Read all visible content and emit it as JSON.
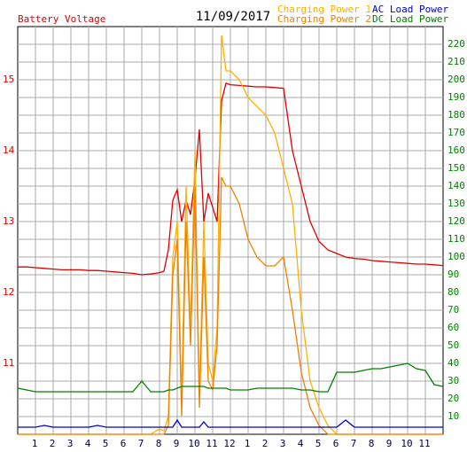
{
  "chart_data": {
    "type": "line",
    "title": "11/09/2017",
    "x": [
      0,
      0.5,
      1,
      1.5,
      2,
      2.5,
      3,
      3.5,
      4,
      4.5,
      5,
      5.5,
      6,
      6.5,
      7,
      7.5,
      8,
      8.25,
      8.5,
      8.75,
      9,
      9.25,
      9.5,
      9.75,
      10,
      10.25,
      10.5,
      10.75,
      11,
      11.25,
      11.5,
      11.75,
      12,
      12.5,
      13,
      13.5,
      14,
      14.5,
      15,
      15.5,
      16,
      16.5,
      17,
      17.5,
      18,
      18.5,
      19,
      19.5,
      20,
      20.5,
      21,
      21.5,
      22,
      22.5,
      23,
      23.5,
      24
    ],
    "xlim": [
      0,
      24
    ],
    "xticks": [
      1,
      2,
      3,
      4,
      5,
      6,
      7,
      8,
      9,
      10,
      11,
      12,
      {
        "value": 13,
        "label": "1"
      },
      {
        "value": 14,
        "label": "2"
      },
      {
        "value": 15,
        "label": "3"
      },
      {
        "value": 16,
        "label": "4"
      },
      {
        "value": 17,
        "label": "5"
      },
      {
        "value": 18,
        "label": "6"
      },
      {
        "value": 19,
        "label": "7"
      },
      {
        "value": 20,
        "label": "8"
      },
      {
        "value": 21,
        "label": "9"
      },
      {
        "value": 22,
        "label": "10"
      },
      {
        "value": 23,
        "label": "11"
      }
    ],
    "ylim": [
      10,
      15.75
    ],
    "yticks": [
      11,
      12,
      13,
      14,
      15
    ],
    "y2lim": [
      0,
      230
    ],
    "y2ticks": [
      10,
      20,
      30,
      40,
      50,
      60,
      70,
      80,
      90,
      100,
      110,
      120,
      130,
      140,
      150,
      160,
      170,
      180,
      190,
      200,
      210,
      220
    ],
    "grid": true,
    "series": [
      {
        "name": "Battery Voltage",
        "color": "#e00000",
        "axis": "y",
        "values": [
          12.36,
          12.36,
          12.35,
          12.34,
          12.33,
          12.32,
          12.32,
          12.32,
          12.31,
          12.31,
          12.3,
          12.29,
          12.28,
          12.27,
          12.25,
          12.26,
          12.28,
          12.3,
          12.6,
          13.3,
          13.45,
          13.0,
          13.3,
          13.1,
          13.6,
          14.3,
          13.0,
          13.4,
          13.2,
          13.0,
          14.7,
          14.95,
          14.93,
          14.92,
          14.91,
          14.9,
          14.9,
          14.89,
          14.88,
          14.0,
          13.5,
          13.0,
          12.72,
          12.6,
          12.55,
          12.5,
          12.48,
          12.47,
          12.45,
          12.44,
          12.43,
          12.42,
          12.41,
          12.4,
          12.4,
          12.39,
          12.38
        ]
      },
      {
        "name": "Charging Power 1",
        "color": "#ffb000",
        "axis": "y2",
        "values": [
          0,
          0,
          0,
          0,
          0,
          0,
          0,
          0,
          0,
          0,
          0,
          0,
          0,
          0,
          0,
          0,
          3,
          2,
          10,
          100,
          120,
          20,
          140,
          60,
          160,
          20,
          120,
          40,
          30,
          60,
          225,
          205,
          205,
          200,
          190,
          185,
          180,
          170,
          150,
          130,
          70,
          30,
          15,
          5,
          0,
          0,
          0,
          0,
          0,
          0,
          0,
          0,
          0,
          0,
          0,
          0,
          0
        ]
      },
      {
        "name": "Charging Power 2",
        "color": "#f08000",
        "axis": "y2",
        "values": [
          0,
          0,
          0,
          0,
          0,
          0,
          0,
          0,
          0,
          0,
          0,
          0,
          0,
          0,
          0,
          0,
          0,
          0,
          5,
          90,
          110,
          10,
          120,
          50,
          140,
          15,
          100,
          30,
          25,
          50,
          145,
          140,
          140,
          130,
          110,
          100,
          95,
          95,
          100,
          70,
          35,
          15,
          5,
          0,
          0,
          0,
          0,
          0,
          0,
          0,
          0,
          0,
          0,
          0,
          0,
          0,
          0
        ]
      },
      {
        "name": "AC Load Power",
        "color": "#0000d0",
        "axis": "y2",
        "values": [
          4,
          4,
          4,
          5,
          4,
          4,
          4,
          4,
          4,
          5,
          4,
          4,
          4,
          4,
          4,
          4,
          4,
          4,
          4,
          4,
          8,
          4,
          4,
          4,
          4,
          4,
          7,
          4,
          4,
          4,
          4,
          4,
          4,
          4,
          4,
          4,
          4,
          4,
          4,
          4,
          4,
          4,
          4,
          4,
          4,
          8,
          4,
          4,
          4,
          4,
          4,
          4,
          4,
          4,
          4,
          4,
          4
        ]
      },
      {
        "name": "DC Load Power",
        "color": "#008000",
        "axis": "y2",
        "values": [
          26,
          25,
          24,
          24,
          24,
          24,
          24,
          24,
          24,
          24,
          24,
          24,
          24,
          24,
          30,
          24,
          24,
          24,
          25,
          25,
          26,
          27,
          27,
          27,
          27,
          27,
          27,
          26,
          26,
          26,
          26,
          26,
          25,
          25,
          25,
          26,
          26,
          26,
          26,
          26,
          25,
          25,
          24,
          24,
          35,
          35,
          35,
          36,
          37,
          37,
          38,
          39,
          40,
          37,
          36,
          28,
          27
        ]
      }
    ]
  }
}
